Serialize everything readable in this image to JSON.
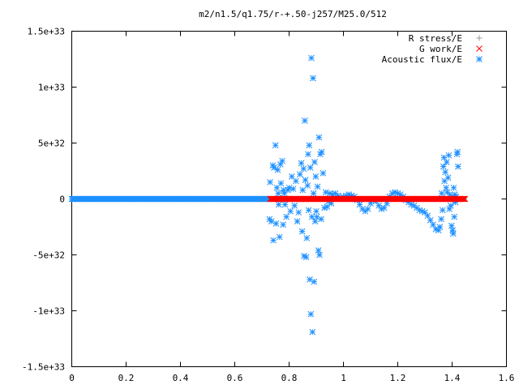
{
  "chart_data": {
    "type": "scatter",
    "title": "m2/n1.5/q1.75/r-+.50-j257/M25.0/512",
    "xlabel": "",
    "ylabel": "",
    "xlim": [
      0,
      1.6
    ],
    "ylim": [
      -1.5e+33,
      1.5e+33
    ],
    "x_ticks": [
      0,
      0.2,
      0.4,
      0.6,
      0.8,
      1,
      1.2,
      1.4,
      1.6
    ],
    "x_tick_labels": [
      "0",
      "0.2",
      "0.4",
      "0.6",
      "0.8",
      "1",
      "1.2",
      "1.4",
      "1.6"
    ],
    "y_ticks": [
      -1.5e+33,
      -1e+33,
      -5e+32,
      0,
      5e+32,
      1e+33,
      1.5e+33
    ],
    "y_tick_labels": [
      "-1.5e+33",
      "-1e+33",
      "-5e+32",
      "0",
      "5e+32",
      "1e+33",
      "1.5e+33"
    ],
    "grid": false,
    "legend_position": "top-right",
    "series": [
      {
        "name": "R stress/E",
        "color": "#999999",
        "marker": "plus",
        "x_range": [
          0.73,
          1.45
        ],
        "values": []
      },
      {
        "name": "G work/E",
        "color": "#ff0000",
        "marker": "cross",
        "x_range": [
          0.73,
          1.45
        ],
        "values": []
      },
      {
        "name": "Acoustic flux/E",
        "color": "#1e90ff",
        "marker": "star",
        "baseline_x_range": [
          0,
          0.73
        ],
        "points": [
          [
            0.728,
            -1.8e+32
          ],
          [
            0.73,
            1.5e+32
          ],
          [
            0.735,
            -2e+32
          ],
          [
            0.74,
            3e+32
          ],
          [
            0.742,
            -3.7e+32
          ],
          [
            0.745,
            2.8e+32
          ],
          [
            0.75,
            4.8e+32
          ],
          [
            0.752,
            -2.2e+32
          ],
          [
            0.755,
            1e+32
          ],
          [
            0.758,
            2.6e+32
          ],
          [
            0.76,
            5e+31
          ],
          [
            0.762,
            -5e+31
          ],
          [
            0.765,
            -3.4e+32
          ],
          [
            0.768,
            3.1e+32
          ],
          [
            0.77,
            1.4e+32
          ],
          [
            0.775,
            3.4e+32
          ],
          [
            0.778,
            -2.3e+32
          ],
          [
            0.78,
            8e+31
          ],
          [
            0.782,
            5e+31
          ],
          [
            0.785,
            -5e+31
          ],
          [
            0.79,
            -1.6e+32
          ],
          [
            0.795,
            8e+31
          ],
          [
            0.8,
            1e+32
          ],
          [
            0.805,
            -1.1e+32
          ],
          [
            0.81,
            2e+32
          ],
          [
            0.815,
            9e+31
          ],
          [
            0.82,
            -6e+31
          ],
          [
            0.825,
            1.6e+32
          ],
          [
            0.83,
            -2e+32
          ],
          [
            0.835,
            -1.2e+32
          ],
          [
            0.84,
            2.2e+32
          ],
          [
            0.845,
            3.2e+32
          ],
          [
            0.848,
            -2.9e+32
          ],
          [
            0.85,
            8e+31
          ],
          [
            0.853,
            2.7e+32
          ],
          [
            0.855,
            -5.1e+32
          ],
          [
            0.858,
            7e+32
          ],
          [
            0.86,
            1.7e+32
          ],
          [
            0.863,
            -5.2e+32
          ],
          [
            0.865,
            -3.5e+32
          ],
          [
            0.868,
            1.2e+32
          ],
          [
            0.87,
            4e+32
          ],
          [
            0.872,
            -1e+32
          ],
          [
            0.874,
            4.8e+32
          ],
          [
            0.876,
            -7.2e+32
          ],
          [
            0.878,
            2.8e+32
          ],
          [
            0.88,
            -1.03e+33
          ],
          [
            0.882,
            1.26e+33
          ],
          [
            0.884,
            -1.6e+32
          ],
          [
            0.886,
            -1.19e+33
          ],
          [
            0.888,
            1.08e+33
          ],
          [
            0.89,
            5e+31
          ],
          [
            0.892,
            -7.4e+32
          ],
          [
            0.894,
            3.3e+32
          ],
          [
            0.896,
            -2e+32
          ],
          [
            0.898,
            2e+32
          ],
          [
            0.9,
            -1.1e+32
          ],
          [
            0.902,
            -1.6e+32
          ],
          [
            0.905,
            1.1e+32
          ],
          [
            0.908,
            -4.6e+32
          ],
          [
            0.91,
            5.5e+32
          ],
          [
            0.912,
            -5e+32
          ],
          [
            0.915,
            4e+32
          ],
          [
            0.918,
            -1.8e+32
          ],
          [
            0.92,
            4.2e+32
          ],
          [
            0.925,
            2.3e+32
          ],
          [
            0.93,
            -8e+31
          ],
          [
            0.935,
            6e+31
          ],
          [
            0.94,
            -7e+31
          ],
          [
            0.945,
            -2e+31
          ],
          [
            0.95,
            5e+31
          ],
          [
            0.955,
            -4e+31
          ],
          [
            0.96,
            4e+31
          ],
          [
            0.97,
            5e+31
          ],
          [
            0.98,
            3e+31
          ],
          [
            0.99,
            1e+31
          ],
          [
            1.0,
            2e+31
          ],
          [
            1.01,
            3e+31
          ],
          [
            1.02,
            4e+31
          ],
          [
            1.03,
            3e+31
          ],
          [
            1.04,
            2e+31
          ],
          [
            1.05,
            -1e+31
          ],
          [
            1.06,
            -5e+31
          ],
          [
            1.07,
            -9e+31
          ],
          [
            1.08,
            -1.1e+32
          ],
          [
            1.09,
            -9e+31
          ],
          [
            1.1,
            -4e+31
          ],
          [
            1.11,
            -1e+31
          ],
          [
            1.12,
            -2e+31
          ],
          [
            1.13,
            -6e+31
          ],
          [
            1.14,
            -9e+31
          ],
          [
            1.15,
            -8e+31
          ],
          [
            1.16,
            -4e+31
          ],
          [
            1.17,
            2e+31
          ],
          [
            1.18,
            5e+31
          ],
          [
            1.19,
            6e+31
          ],
          [
            1.2,
            5e+31
          ],
          [
            1.21,
            4e+31
          ],
          [
            1.22,
            2e+31
          ],
          [
            1.23,
            -1e+31
          ],
          [
            1.24,
            -3e+31
          ],
          [
            1.25,
            -5e+31
          ],
          [
            1.26,
            -6e+31
          ],
          [
            1.27,
            -8e+31
          ],
          [
            1.28,
            -1e+32
          ],
          [
            1.29,
            -1.1e+32
          ],
          [
            1.3,
            -1.2e+32
          ],
          [
            1.31,
            -1.5e+32
          ],
          [
            1.32,
            -1.9e+32
          ],
          [
            1.33,
            -2.3e+32
          ],
          [
            1.34,
            -2.7e+32
          ],
          [
            1.35,
            -2.8e+32
          ],
          [
            1.355,
            -2.5e+32
          ],
          [
            1.36,
            -1.8e+32
          ],
          [
            1.362,
            5e+31
          ],
          [
            1.365,
            -1e+32
          ],
          [
            1.368,
            2.9e+32
          ],
          [
            1.37,
            3.7e+32
          ],
          [
            1.372,
            1.6e+32
          ],
          [
            1.375,
            2.4e+32
          ],
          [
            1.378,
            1e+32
          ],
          [
            1.38,
            3.3e+32
          ],
          [
            1.382,
            6e+31
          ],
          [
            1.385,
            1.9e+32
          ],
          [
            1.388,
            3.9e+32
          ],
          [
            1.39,
            -9e+31
          ],
          [
            1.392,
            4e+31
          ],
          [
            1.395,
            -6e+31
          ],
          [
            1.398,
            -2.4e+32
          ],
          [
            1.4,
            2e+31
          ],
          [
            1.402,
            -2.8e+32
          ],
          [
            1.404,
            -3.1e+32
          ],
          [
            1.406,
            1e+32
          ],
          [
            1.408,
            -1.6e+32
          ],
          [
            1.41,
            4e+31
          ],
          [
            1.412,
            -3e+31
          ],
          [
            1.415,
            2e+31
          ],
          [
            1.418,
            4e+32
          ],
          [
            1.42,
            4.2e+32
          ],
          [
            1.422,
            2.9e+32
          ]
        ]
      }
    ]
  }
}
